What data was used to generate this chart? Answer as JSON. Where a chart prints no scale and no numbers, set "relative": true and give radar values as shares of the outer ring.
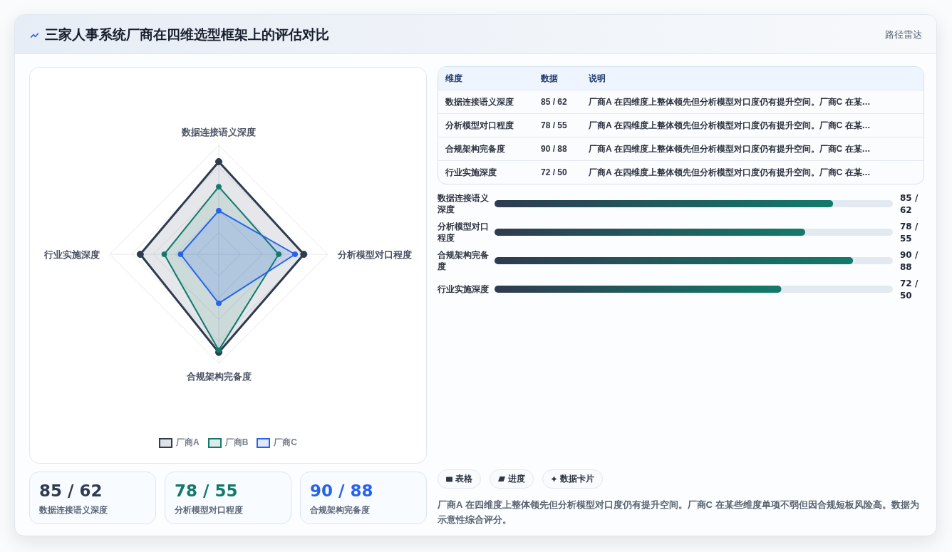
{
  "chart_data": [
    {
      "type": "radar",
      "title": "三家人事系统厂商在四维选型框架上的评估对比",
      "categories": [
        "数据连接语义深度",
        "分析模型对口程度",
        "合规架构完备度",
        "行业实施深度"
      ],
      "series": [
        {
          "name": "厂商A",
          "color": "#2f3b4f",
          "values": [
            0.85,
            0.78,
            0.9,
            0.72
          ]
        },
        {
          "name": "厂商B",
          "color": "#137a6b",
          "values": [
            0.62,
            0.55,
            0.88,
            0.5
          ]
        },
        {
          "name": "厂商C",
          "color": "#2563eb",
          "values": [
            0.4,
            0.7,
            0.45,
            0.35
          ]
        }
      ],
      "relative": true,
      "grid": true,
      "legend": "bottom",
      "marker": "circle"
    },
    {
      "type": "other",
      "subtitle": "路径雷达",
      "categories": [
        "数据连接语义深度",
        "分析模型对口程度",
        "合规架构完备度",
        "行业实施深度"
      ],
      "value_labels": [
        "85 / 62",
        "78 / 55",
        "90 / 88",
        "72 / 50"
      ],
      "annotations": [
        "维度",
        "数据",
        "说明",
        "厂商A 在四维度上整体领先但分析模型对口度仍有提升空间。厂商C 在某…",
        "厂商A 在四维度上整体领先但分析模型对口度仍有提升空间。厂商C 在某…",
        "厂商A 在四维度上整体领先但分析模型对口度仍有提升空间。厂商C 在某…",
        "厂商A 在四维度上整体领先但分析模型对口度仍有提升空间。厂商C 在某…"
      ]
    },
    {
      "type": "bar",
      "orientation": "horizontal",
      "categories": [
        "数据连接语义深度",
        "分析模型对口程度",
        "合规架构完备度",
        "行业实施深度"
      ],
      "values": [
        85,
        78,
        90,
        72
      ],
      "value_labels": [
        "85 / 62",
        "78 / 55",
        "90 / 88",
        "72 / 50"
      ],
      "color": "#137a6b",
      "xlim": [
        0,
        100
      ],
      "tick_labels": "y"
    },
    {
      "type": "other",
      "categories": [
        "数据连接语义深度",
        "分析模型对口程度",
        "合规架构完备度"
      ],
      "value_labels": [
        "85 / 62",
        "78 / 55",
        "90 / 88"
      ],
      "colors": [
        "#2f3b4f",
        "#137a6b",
        "#2563eb"
      ]
    },
    {
      "type": "other",
      "annotations": [
        "表格",
        "进度",
        "数据卡片",
        "厂商A 在四维度上整体领先但分析模型对口度仍有提升空间。厂商C 在某些维度单项不弱但因合规短板风险高。数据为示意性综合评分。"
      ]
    }
  ]
}
